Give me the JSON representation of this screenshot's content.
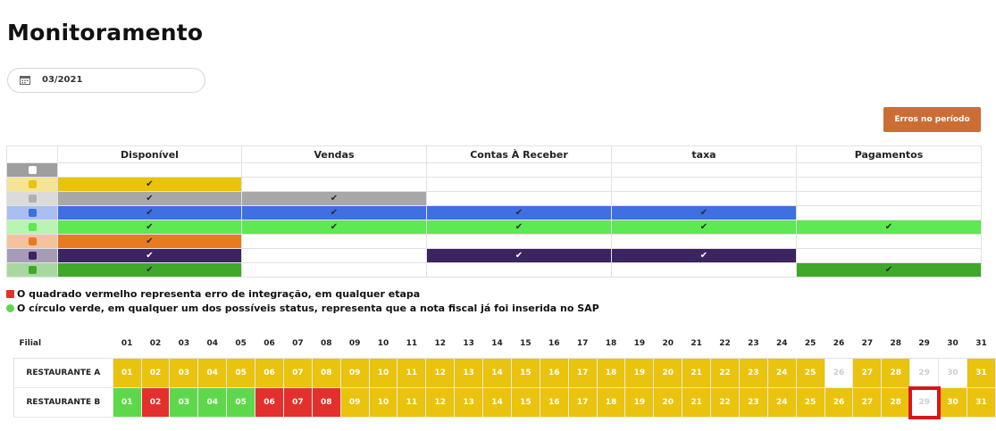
{
  "page": {
    "title": "Monitoramento"
  },
  "period": {
    "value": "03/2021"
  },
  "buttons": {
    "errors": "Erros no período"
  },
  "status_table": {
    "headers": [
      "",
      "Disponível",
      "Vendas",
      "Contas À Receber",
      "taxa",
      "Pagamentos"
    ],
    "rows": [
      {
        "color": "#9e9e9e",
        "cells": [
          null,
          null,
          null,
          null,
          null
        ]
      },
      {
        "color": "#e9c30e",
        "cells": [
          "#e9c30e",
          null,
          null,
          null,
          null
        ]
      },
      {
        "color": "#b0b0b0",
        "cells": [
          "#a8a8a8",
          "#a8a8a8",
          null,
          null,
          null
        ]
      },
      {
        "color": "#3f6fe0",
        "cells": [
          "#3f6fe0",
          "#3f6fe0",
          "#3f6fe0",
          "#3f6fe0",
          null
        ]
      },
      {
        "color": "#5ee852",
        "cells": [
          "#5ee852",
          "#5ee852",
          "#5ee852",
          "#5ee852",
          "#5ee852"
        ]
      },
      {
        "color": "#e87a20",
        "cells": [
          "#e87a20",
          null,
          null,
          null,
          null
        ]
      },
      {
        "color": "#3b2460",
        "cells": [
          "#3b2460",
          null,
          "#3b2460",
          "#3b2460",
          null
        ]
      },
      {
        "color": "#3ea82b",
        "cells": [
          "#3ea82b",
          null,
          null,
          null,
          "#3ea82b"
        ]
      }
    ],
    "check": "✔"
  },
  "legend": {
    "red": "O quadrado vermelho representa erro de integração, em qualquer etapa",
    "green": "O círculo verde, em qualquer um dos possíveis status, representa que a nota fiscal já foi inserida no SAP",
    "red_color": "#e3302c",
    "green_color": "#5ed84b"
  },
  "day_table": {
    "header_label": "Filial",
    "days": [
      "01",
      "02",
      "03",
      "04",
      "05",
      "06",
      "07",
      "08",
      "09",
      "10",
      "11",
      "12",
      "13",
      "14",
      "15",
      "16",
      "17",
      "18",
      "19",
      "20",
      "21",
      "22",
      "23",
      "24",
      "25",
      "26",
      "27",
      "28",
      "29",
      "30",
      "31"
    ],
    "rows": [
      {
        "name": "RESTAURANTE A",
        "status": [
          "y",
          "y",
          "y",
          "y",
          "y",
          "y",
          "y",
          "y",
          "y",
          "y",
          "y",
          "y",
          "y",
          "y",
          "y",
          "y",
          "y",
          "y",
          "y",
          "y",
          "y",
          "y",
          "y",
          "y",
          "y",
          "w",
          "y",
          "y",
          "w",
          "w",
          "y"
        ]
      },
      {
        "name": "RESTAURANTE B",
        "status": [
          "g",
          "r",
          "g",
          "g",
          "g",
          "r",
          "r",
          "r",
          "y",
          "y",
          "y",
          "y",
          "y",
          "y",
          "y",
          "y",
          "y",
          "y",
          "y",
          "y",
          "y",
          "y",
          "y",
          "y",
          "y",
          "y",
          "y",
          "y",
          "w",
          "y",
          "y"
        ],
        "highlight_day": "29"
      }
    ]
  }
}
